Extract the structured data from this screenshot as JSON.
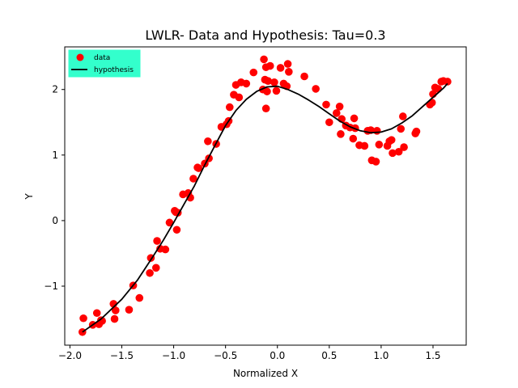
{
  "chart_data": {
    "type": "scatter",
    "title": "LWLR- Data and Hypothesis: Tau=0.3",
    "xlabel": "Normalized X",
    "ylabel": "Y",
    "xlim": [
      -2.05,
      1.82
    ],
    "ylim": [
      -1.9,
      2.65
    ],
    "xticks": [
      -2.0,
      -1.5,
      -1.0,
      -0.5,
      0.0,
      0.5,
      1.0,
      1.5
    ],
    "xtick_labels": [
      "−2.0",
      "−1.5",
      "−1.0",
      "−0.5",
      "0.0",
      "0.5",
      "1.0",
      "1.5"
    ],
    "yticks": [
      -1,
      0,
      1,
      2
    ],
    "ytick_labels": [
      "−1",
      "0",
      "1",
      "2"
    ],
    "grid": false,
    "legend_position": "top-left",
    "legend_background": "#33ffcc",
    "series": [
      {
        "name": "data",
        "type": "scatter",
        "color": "#ff0000",
        "x": [
          -1.88,
          -1.87,
          -1.78,
          -1.74,
          -1.72,
          -1.7,
          -1.69,
          -1.58,
          -1.57,
          -1.56,
          -1.43,
          -1.39,
          -1.33,
          -1.23,
          -1.22,
          -1.17,
          -1.16,
          -1.13,
          -1.08,
          -1.04,
          -0.99,
          -0.98,
          -0.97,
          -0.96,
          -0.91,
          -0.86,
          -0.84,
          -0.81,
          -0.77,
          -0.76,
          -0.7,
          -0.67,
          -0.66,
          -0.59,
          -0.54,
          -0.49,
          -0.47,
          -0.46,
          -0.42,
          -0.4,
          -0.37,
          -0.35,
          -0.3,
          -0.23,
          -0.14,
          -0.13,
          -0.12,
          -0.11,
          -0.11,
          -0.1,
          -0.09,
          -0.07,
          -0.03,
          -0.01,
          0.03,
          0.06,
          0.09,
          0.1,
          0.11,
          0.26,
          0.37,
          0.47,
          0.5,
          0.57,
          0.6,
          0.61,
          0.62,
          0.66,
          0.7,
          0.73,
          0.74,
          0.75,
          0.79,
          0.84,
          0.87,
          0.9,
          0.91,
          0.95,
          0.96,
          0.98,
          1.06,
          1.08,
          1.1,
          1.11,
          1.17,
          1.19,
          1.21,
          1.22,
          1.33,
          1.34,
          1.47,
          1.49,
          1.5,
          1.52,
          1.55,
          1.58,
          1.6,
          1.64
        ],
        "y": [
          -1.7,
          -1.49,
          -1.59,
          -1.41,
          -1.58,
          -1.52,
          -1.53,
          -1.27,
          -1.5,
          -1.37,
          -1.36,
          -0.99,
          -1.18,
          -0.8,
          -0.57,
          -0.72,
          -0.31,
          -0.43,
          -0.44,
          -0.03,
          0.15,
          0.13,
          -0.14,
          0.12,
          0.4,
          0.42,
          0.35,
          0.64,
          0.81,
          0.8,
          0.87,
          1.21,
          0.95,
          1.17,
          1.43,
          1.47,
          1.52,
          1.73,
          1.92,
          2.07,
          1.88,
          2.11,
          2.09,
          2.26,
          2.0,
          2.46,
          2.15,
          2.34,
          1.71,
          1.97,
          2.13,
          2.36,
          2.11,
          1.98,
          2.33,
          2.09,
          2.05,
          2.39,
          2.27,
          2.2,
          2.01,
          1.77,
          1.5,
          1.64,
          1.74,
          1.32,
          1.55,
          1.45,
          1.42,
          1.25,
          1.56,
          1.41,
          1.15,
          1.14,
          1.37,
          1.38,
          0.92,
          0.9,
          1.37,
          1.16,
          1.14,
          1.21,
          1.23,
          1.03,
          1.05,
          1.4,
          1.59,
          1.12,
          1.33,
          1.36,
          1.77,
          1.8,
          1.93,
          2.03,
          2.01,
          2.12,
          2.13,
          2.12
        ]
      },
      {
        "name": "hypothesis",
        "type": "line",
        "color": "#000000",
        "x": [
          -1.88,
          -1.7,
          -1.5,
          -1.35,
          -1.2,
          -1.1,
          -1.0,
          -0.9,
          -0.8,
          -0.7,
          -0.6,
          -0.5,
          -0.4,
          -0.3,
          -0.2,
          -0.1,
          0.0,
          0.1,
          0.2,
          0.3,
          0.4,
          0.5,
          0.6,
          0.7,
          0.8,
          0.9,
          1.0,
          1.1,
          1.2,
          1.3,
          1.4,
          1.5,
          1.55,
          1.6,
          1.64
        ],
        "y": [
          -1.7,
          -1.5,
          -1.2,
          -0.91,
          -0.55,
          -0.3,
          -0.03,
          0.25,
          0.53,
          0.85,
          1.15,
          1.45,
          1.68,
          1.85,
          1.97,
          2.04,
          2.05,
          2.0,
          1.93,
          1.84,
          1.74,
          1.63,
          1.52,
          1.43,
          1.37,
          1.34,
          1.35,
          1.4,
          1.49,
          1.6,
          1.74,
          1.88,
          1.95,
          2.02,
          2.09
        ]
      }
    ]
  }
}
